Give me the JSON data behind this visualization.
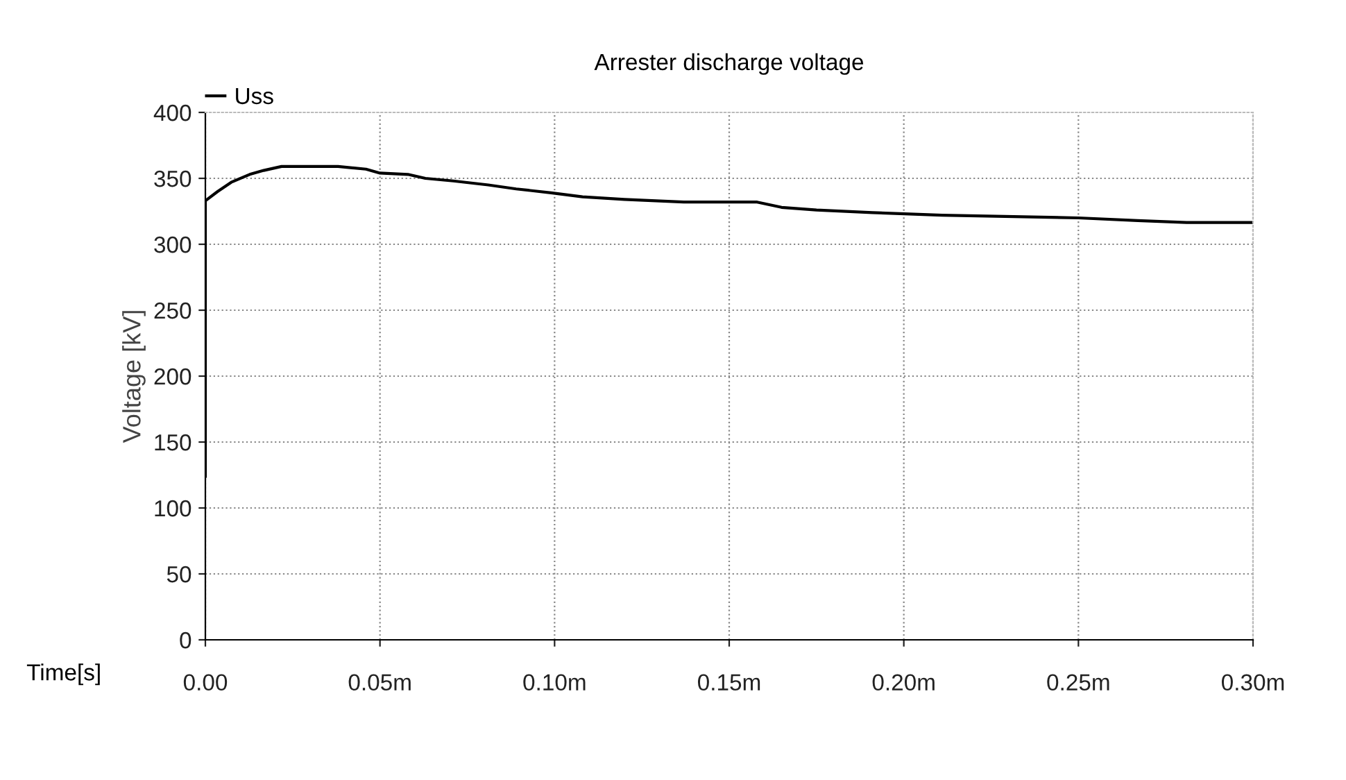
{
  "chart_data": {
    "type": "line",
    "title": "Arrester discharge voltage",
    "xlabel": "Time[s]",
    "ylabel": "Voltage [kV]",
    "xlim": [
      0,
      0.3
    ],
    "ylim": [
      0,
      400
    ],
    "xticks": [
      {
        "value": 0,
        "label": "0.00"
      },
      {
        "value": 0.05,
        "label": "0.05m"
      },
      {
        "value": 0.1,
        "label": "0.10m"
      },
      {
        "value": 0.15,
        "label": "0.15m"
      },
      {
        "value": 0.2,
        "label": "0.20m"
      },
      {
        "value": 0.25,
        "label": "0.25m"
      },
      {
        "value": 0.3,
        "label": "0.30m"
      }
    ],
    "yticks": [
      0,
      50,
      100,
      150,
      200,
      250,
      300,
      350,
      400
    ],
    "grid": true,
    "legend": "top left",
    "line_style": "solid",
    "marker": "none",
    "series": [
      {
        "name": "Uss",
        "color": "#000000",
        "x": [
          0,
          0,
          0.0035,
          0.0074,
          0.0127,
          0.0167,
          0.0218,
          0.038,
          0.046,
          0.05,
          0.058,
          0.063,
          0.071,
          0.081,
          0.089,
          0.099,
          0.108,
          0.12,
          0.137,
          0.148,
          0.158,
          0.165,
          0.175,
          0.191,
          0.211,
          0.25,
          0.267,
          0.281,
          0.3
        ],
        "values": [
          124,
          333,
          340,
          347,
          353,
          356,
          359,
          359,
          357,
          354,
          353,
          350,
          348,
          345,
          342,
          339,
          336,
          334,
          332,
          332,
          332,
          328,
          326,
          324,
          322,
          320,
          318,
          316.5,
          316.5
        ]
      }
    ]
  }
}
